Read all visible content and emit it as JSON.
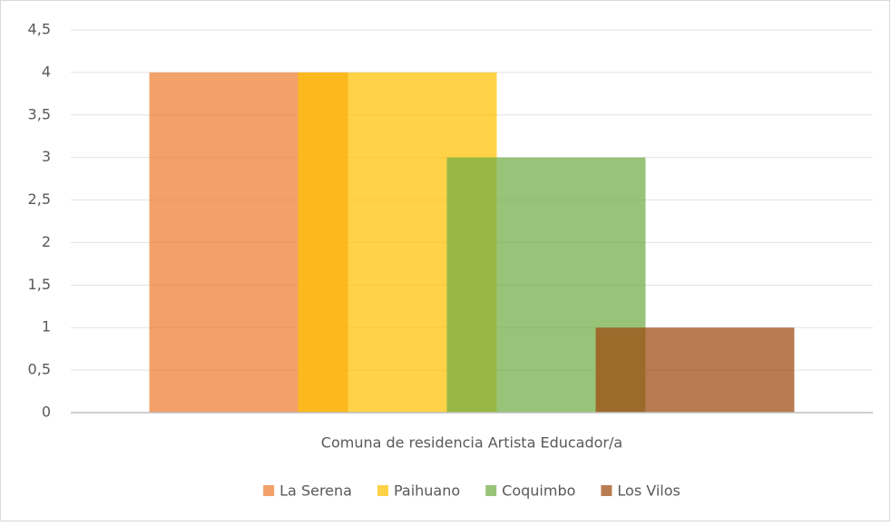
{
  "chart_data": {
    "type": "bar",
    "categories": [
      "Comuna de residencia Artista Educador/a"
    ],
    "series": [
      {
        "name": "La Serena",
        "color": "#ED7D31",
        "values": [
          4
        ]
      },
      {
        "name": "Paihuano",
        "color": "#FFC000",
        "values": [
          4
        ]
      },
      {
        "name": "Coquimbo",
        "color": "#70AD47",
        "values": [
          3
        ]
      },
      {
        "name": "Los Vilos",
        "color": "#9E480E",
        "values": [
          1
        ]
      }
    ],
    "ylim": [
      0,
      4.5
    ],
    "yticks": [
      0,
      {
        "value": 0.5,
        "label": "0,5"
      },
      1,
      {
        "value": 1.5,
        "label": "1,5"
      },
      2,
      {
        "value": 2.5,
        "label": "2,5"
      },
      3,
      {
        "value": 3.5,
        "label": "3,5"
      },
      4,
      {
        "value": 4.5,
        "label": "4,5"
      }
    ],
    "grid": true,
    "legend": "bottom"
  }
}
